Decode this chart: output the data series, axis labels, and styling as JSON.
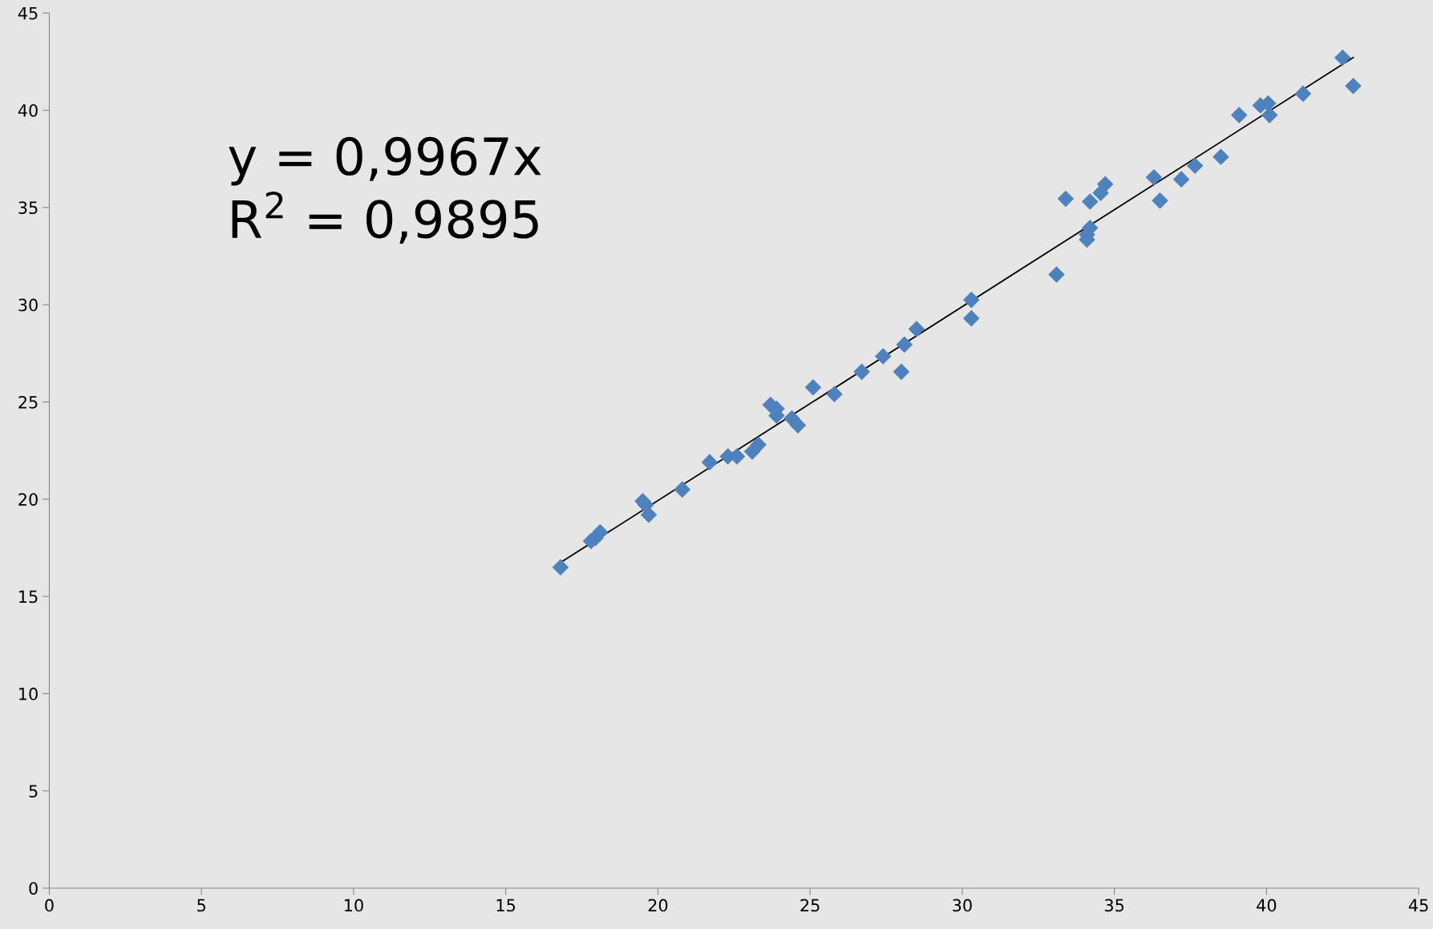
{
  "chart_data": {
    "type": "scatter",
    "xlim": [
      0,
      45
    ],
    "ylim": [
      0,
      45
    ],
    "xticks": [
      0,
      5,
      10,
      15,
      20,
      25,
      30,
      35,
      40,
      45
    ],
    "yticks": [
      0,
      5,
      10,
      15,
      20,
      25,
      30,
      35,
      40,
      45
    ],
    "grid": false,
    "legend": false,
    "marker": "diamond",
    "annotations": [
      "y = 0,9967x\nR$^{2}$ = 0,9895"
    ],
    "series": [
      {
        "color": "#4f81bd",
        "x": [
          16.8,
          17.8,
          17.95,
          18.1,
          19.5,
          19.6,
          19.7,
          20.8,
          21.7,
          22.3,
          22.6,
          23.1,
          23.3,
          23.7,
          23.9,
          23.9,
          24.4,
          24.6,
          25.1,
          25.8,
          26.7,
          27.4,
          28.0,
          28.1,
          28.5,
          30.3,
          30.3,
          33.1,
          33.4,
          34.1,
          34.1,
          34.2,
          34.2,
          34.55,
          34.7,
          36.3,
          36.5,
          37.2,
          37.65,
          38.5,
          39.1,
          39.8,
          40.05,
          40.1,
          41.2,
          42.5,
          42.85
        ],
        "values": [
          16.5,
          17.85,
          18.0,
          18.3,
          19.9,
          19.7,
          19.2,
          20.5,
          21.9,
          22.2,
          22.2,
          22.45,
          22.8,
          24.85,
          24.65,
          24.3,
          24.15,
          23.8,
          25.75,
          25.4,
          26.55,
          27.35,
          26.55,
          27.95,
          28.75,
          30.25,
          29.3,
          31.55,
          35.45,
          33.35,
          33.6,
          33.95,
          35.3,
          35.75,
          36.2,
          36.55,
          35.35,
          36.45,
          37.15,
          37.6,
          39.75,
          40.25,
          40.35,
          39.75,
          40.85,
          42.7,
          41.25
        ]
      },
      {
        "type": "line",
        "color": "#000000",
        "marker": "none",
        "x": [
          16.8,
          42.85
        ],
        "values": [
          16.74,
          42.71
        ]
      }
    ]
  }
}
